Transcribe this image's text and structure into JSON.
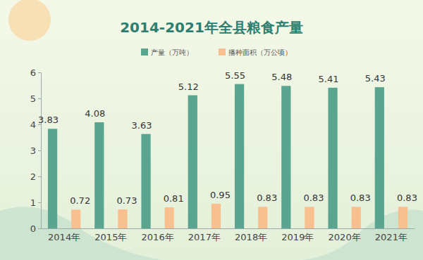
{
  "chart_data": {
    "type": "bar",
    "title": "2014-2021年全县粮食产量",
    "categories": [
      "2014年",
      "2015年",
      "2016年",
      "2017年",
      "2018年",
      "2019年",
      "2020年",
      "2021年"
    ],
    "series": [
      {
        "name": "产量（万吨）",
        "color": "#5aa590",
        "values": [
          3.83,
          4.08,
          3.63,
          5.12,
          5.55,
          5.48,
          5.41,
          5.43
        ]
      },
      {
        "name": "播种面积（万公顷）",
        "color": "#f8c08e",
        "values": [
          0.72,
          0.73,
          0.81,
          0.95,
          0.83,
          0.83,
          0.83,
          0.83
        ]
      }
    ],
    "ylim": [
      0,
      6
    ],
    "yticks": [
      0,
      1,
      2,
      3,
      4,
      5,
      6
    ],
    "grid": false,
    "data_labels": true,
    "legend": "top"
  }
}
